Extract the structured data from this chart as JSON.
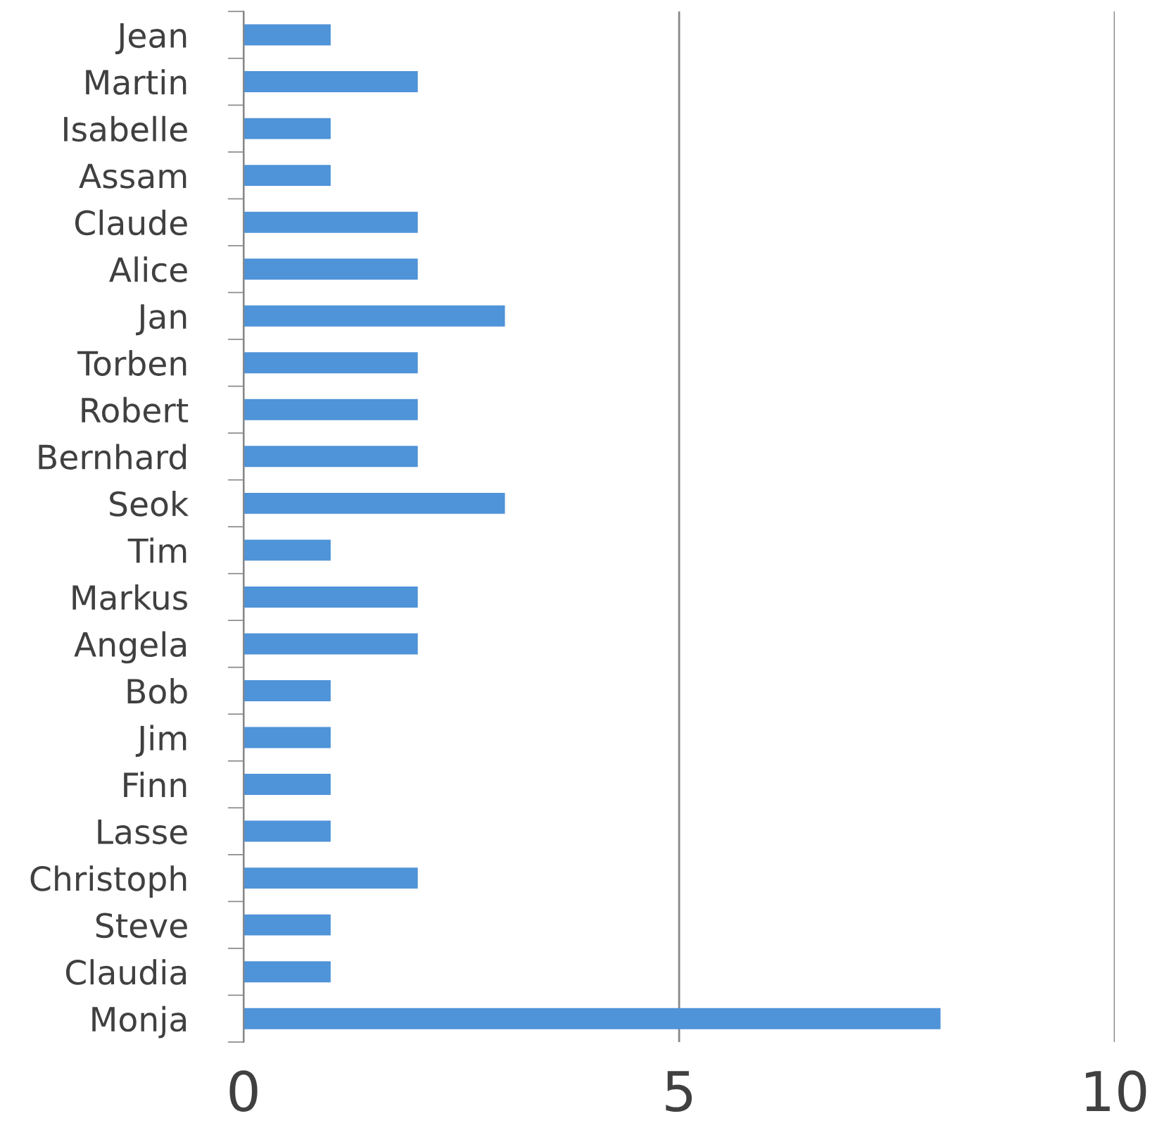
{
  "chart_data": {
    "type": "bar",
    "orientation": "horizontal",
    "categories": [
      "Jean",
      "Martin",
      "Isabelle",
      "Assam",
      "Claude",
      "Alice",
      "Jan",
      "Torben",
      "Robert",
      "Bernhard",
      "Seok",
      "Tim",
      "Markus",
      "Angela",
      "Bob",
      "Jim",
      "Finn",
      "Lasse",
      "Christoph",
      "Steve",
      "Claudia",
      "Monja"
    ],
    "values": [
      1,
      2,
      1,
      1,
      2,
      2,
      3,
      2,
      2,
      2,
      3,
      1,
      2,
      2,
      1,
      1,
      1,
      1,
      2,
      1,
      1,
      8
    ],
    "color": "#4f93d8",
    "xlim": [
      0,
      10
    ],
    "xticks": [
      0,
      5,
      10
    ],
    "grid": "x"
  }
}
